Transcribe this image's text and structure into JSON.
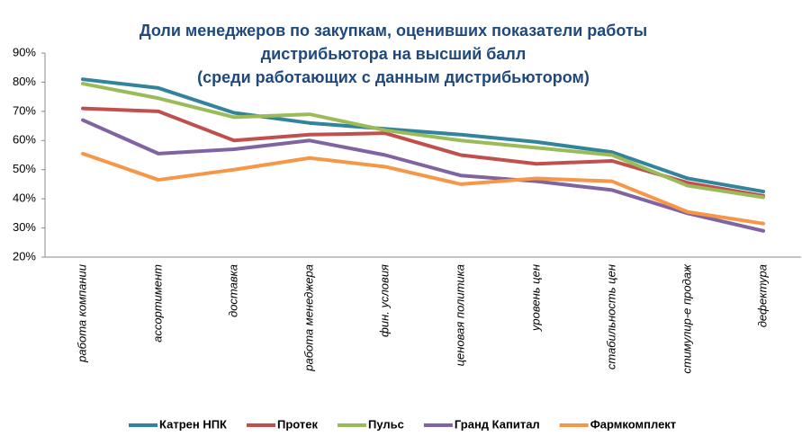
{
  "chart_data": {
    "type": "line",
    "title": [
      "Доли менеджеров по закупкам, оценивших показатели работы",
      "дистрибьютора на высший балл",
      "(среди работающих с данным дистрибьютором)"
    ],
    "categories": [
      "работа компании",
      "ассортимент",
      "доставка",
      "работа менеджера",
      "фин. условия",
      "ценовая политика",
      "уровень цен",
      "стабильность цен",
      "стимулир-е продаж",
      "дефектура"
    ],
    "series": [
      {
        "name": "Катрен НПК",
        "color": "#31849b",
        "values": [
          81,
          78,
          69.5,
          66,
          64,
          62,
          59.5,
          56,
          47,
          42.5
        ]
      },
      {
        "name": "Протек",
        "color": "#c0504d",
        "values": [
          71,
          70,
          60,
          62,
          62.5,
          55,
          52,
          53,
          45.5,
          41
        ]
      },
      {
        "name": "Пульс",
        "color": "#9bbb59",
        "values": [
          79.5,
          74.5,
          68,
          69,
          63.5,
          60,
          57.5,
          55,
          44.5,
          40.5
        ]
      },
      {
        "name": "Гранд Капитал",
        "color": "#8064a2",
        "values": [
          67,
          55.5,
          57,
          60,
          55,
          48,
          46,
          43,
          35,
          29
        ]
      },
      {
        "name": "Фармкомплект",
        "color": "#f79646",
        "values": [
          55.5,
          46.5,
          50,
          54,
          51,
          45,
          47,
          46,
          35.5,
          31.5
        ]
      }
    ],
    "ylim": [
      20,
      90
    ],
    "yticks": [
      {
        "value": 20,
        "label": "20%"
      },
      {
        "value": 30,
        "label": "30%"
      },
      {
        "value": 40,
        "label": "40%"
      },
      {
        "value": 50,
        "label": "50%"
      },
      {
        "value": 60,
        "label": "60%"
      },
      {
        "value": 70,
        "label": "70%"
      },
      {
        "value": 80,
        "label": "80%"
      },
      {
        "value": 90,
        "label": "90%"
      }
    ],
    "legend": "bottom"
  }
}
